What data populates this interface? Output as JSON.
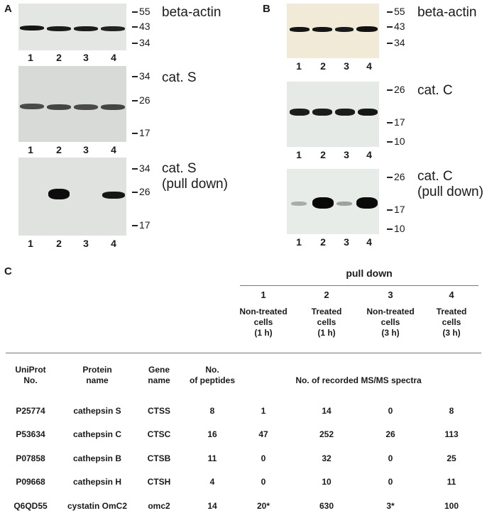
{
  "panels": {
    "a": "A",
    "b": "B",
    "c": "C"
  },
  "blots": {
    "a1": {
      "label": "beta-actin",
      "markers": [
        "55",
        "43",
        "34"
      ],
      "lanes": [
        "1",
        "2",
        "3",
        "4"
      ]
    },
    "a2": {
      "label": "cat. S",
      "markers": [
        "34",
        "26",
        "17"
      ],
      "lanes": [
        "1",
        "2",
        "3",
        "4"
      ]
    },
    "a3": {
      "label1": "cat. S",
      "label2": "(pull down)",
      "markers": [
        "34",
        "26",
        "17"
      ],
      "lanes": [
        "1",
        "2",
        "3",
        "4"
      ]
    },
    "b1": {
      "label": "beta-actin",
      "markers": [
        "55",
        "43",
        "34"
      ],
      "lanes": [
        "1",
        "2",
        "3",
        "4"
      ]
    },
    "b2": {
      "label": "cat. C",
      "markers": [
        "26",
        "17",
        "10"
      ],
      "lanes": [
        "1",
        "2",
        "3",
        "4"
      ]
    },
    "b3": {
      "label1": "cat. C",
      "label2": "(pull down)",
      "markers": [
        "26",
        "17",
        "10"
      ],
      "lanes": [
        "1",
        "2",
        "3",
        "4"
      ]
    }
  },
  "table": {
    "pulldown_label": "pull down",
    "samples": [
      {
        "num": "1",
        "l1": "Non-treated",
        "l2": "cells",
        "l3": "(1 h)"
      },
      {
        "num": "2",
        "l1": "Treated",
        "l2": "cells",
        "l3": "(1 h)"
      },
      {
        "num": "3",
        "l1": "Non-treated",
        "l2": "cells",
        "l3": "(3 h)"
      },
      {
        "num": "4",
        "l1": "Treated",
        "l2": "cells",
        "l3": "(3 h)"
      }
    ],
    "headers": {
      "uniprot1": "UniProt",
      "uniprot2": "No.",
      "protein1": "Protein",
      "protein2": "name",
      "gene1": "Gene",
      "gene2": "name",
      "pep1": "No.",
      "pep2": "of peptides",
      "spectra": "No. of recorded MS/MS spectra"
    },
    "rows": [
      {
        "id": "P25774",
        "protein": "cathepsin S",
        "gene": "CTSS",
        "peptides": "8",
        "s1": "1",
        "s2": "14",
        "s3": "0",
        "s4": "8"
      },
      {
        "id": "P53634",
        "protein": "cathepsin C",
        "gene": "CTSC",
        "peptides": "16",
        "s1": "47",
        "s2": "252",
        "s3": "26",
        "s4": "113"
      },
      {
        "id": "P07858",
        "protein": "cathepsin B",
        "gene": "CTSB",
        "peptides": "11",
        "s1": "0",
        "s2": "32",
        "s3": "0",
        "s4": "25"
      },
      {
        "id": "P09668",
        "protein": "cathepsin H",
        "gene": "CTSH",
        "peptides": "4",
        "s1": "0",
        "s2": "10",
        "s3": "0",
        "s4": "11"
      },
      {
        "id": "Q6QD55",
        "protein": "cystatin OmC2",
        "gene": "omc2",
        "peptides": "14",
        "s1": "20*",
        "s2": "630",
        "s3": "3*",
        "s4": "100"
      }
    ]
  }
}
